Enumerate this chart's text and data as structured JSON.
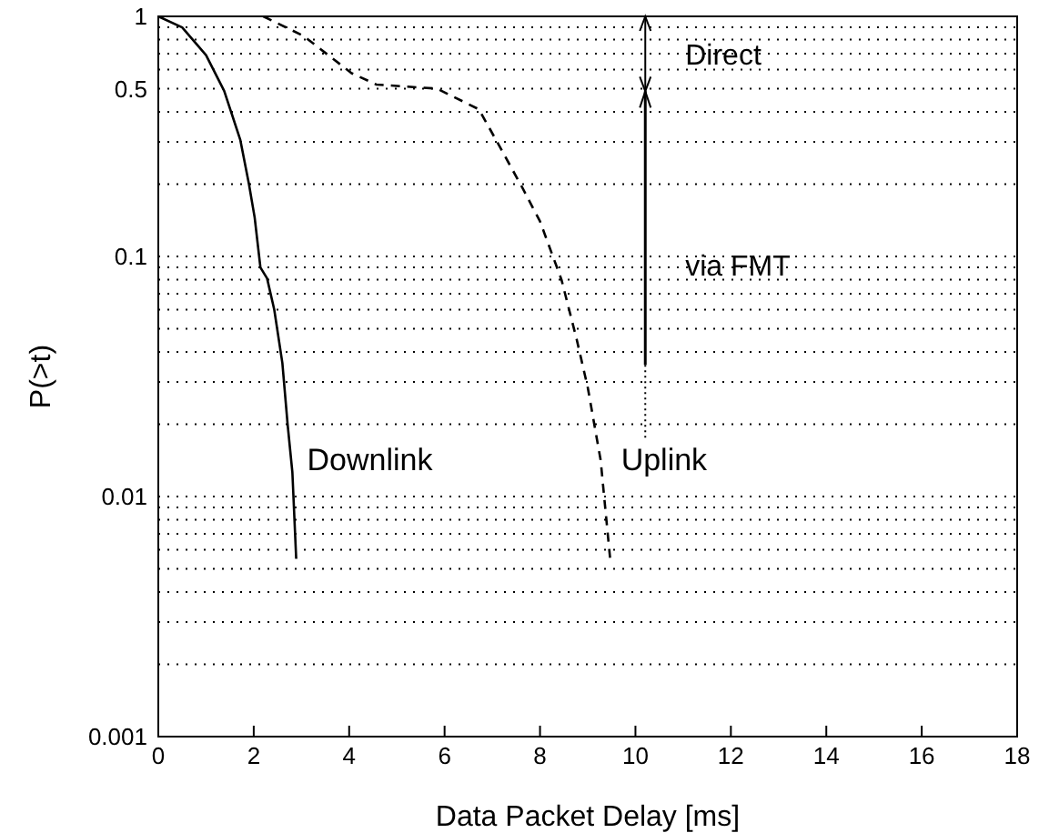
{
  "chart_data": {
    "type": "line",
    "xlabel": "Data Packet Delay  [ms]",
    "ylabel": "P(>t)",
    "log": "y",
    "grid": "y",
    "xlim": [
      0,
      18
    ],
    "xticks": [
      0,
      2,
      4,
      6,
      8,
      10,
      12,
      14,
      16,
      18
    ],
    "ylim": [
      0.001,
      1
    ],
    "yticks": [
      {
        "value": 0.001,
        "label": "0.001"
      },
      {
        "value": 0.002,
        "label": null
      },
      {
        "value": 0.003,
        "label": null
      },
      {
        "value": 0.004,
        "label": null
      },
      {
        "value": 0.005,
        "label": null
      },
      {
        "value": 0.006,
        "label": null
      },
      {
        "value": 0.007,
        "label": null
      },
      {
        "value": 0.008,
        "label": null
      },
      {
        "value": 0.009,
        "label": null
      },
      {
        "value": 0.01,
        "label": "0.01"
      },
      {
        "value": 0.02,
        "label": null
      },
      {
        "value": 0.03,
        "label": null
      },
      {
        "value": 0.04,
        "label": null
      },
      {
        "value": 0.05,
        "label": null
      },
      {
        "value": 0.06,
        "label": null
      },
      {
        "value": 0.07,
        "label": null
      },
      {
        "value": 0.08,
        "label": null
      },
      {
        "value": 0.09,
        "label": null
      },
      {
        "value": 0.1,
        "label": "0.1"
      },
      {
        "value": 0.2,
        "label": null
      },
      {
        "value": 0.3,
        "label": null
      },
      {
        "value": 0.4,
        "label": null
      },
      {
        "value": 0.5,
        "label": "0.5"
      },
      {
        "value": 0.6,
        "label": null
      },
      {
        "value": 0.7,
        "label": null
      },
      {
        "value": 0.8,
        "label": null
      },
      {
        "value": 0.9,
        "label": null
      },
      {
        "value": 1,
        "label": "1"
      }
    ],
    "series": [
      {
        "name": "Downlink",
        "color": "#000000",
        "line_style": "solid",
        "x": [
          0,
          0.5,
          1.0,
          1.38,
          1.72,
          1.9,
          2.02,
          2.14,
          2.28,
          2.43,
          2.6,
          2.71,
          2.81,
          2.89
        ],
        "values": [
          1,
          0.9,
          0.69,
          0.49,
          0.305,
          0.2,
          0.145,
          0.09,
          0.081,
          0.06,
          0.036,
          0.02,
          0.0126,
          0.0055
        ]
      },
      {
        "name": "Uplink",
        "color": "#000000",
        "line_style": "dashed",
        "x": [
          2.2,
          3.04,
          4.05,
          4.57,
          5.84,
          6.72,
          7.1,
          7.62,
          8.0,
          8.45,
          8.77,
          9.0,
          9.27,
          9.47
        ],
        "values": [
          1,
          0.83,
          0.58,
          0.52,
          0.5,
          0.41,
          0.3,
          0.195,
          0.14,
          0.08,
          0.045,
          0.0285,
          0.0142,
          0.0055
        ]
      }
    ],
    "annotations": [
      "Direct",
      "via FMT"
    ]
  }
}
